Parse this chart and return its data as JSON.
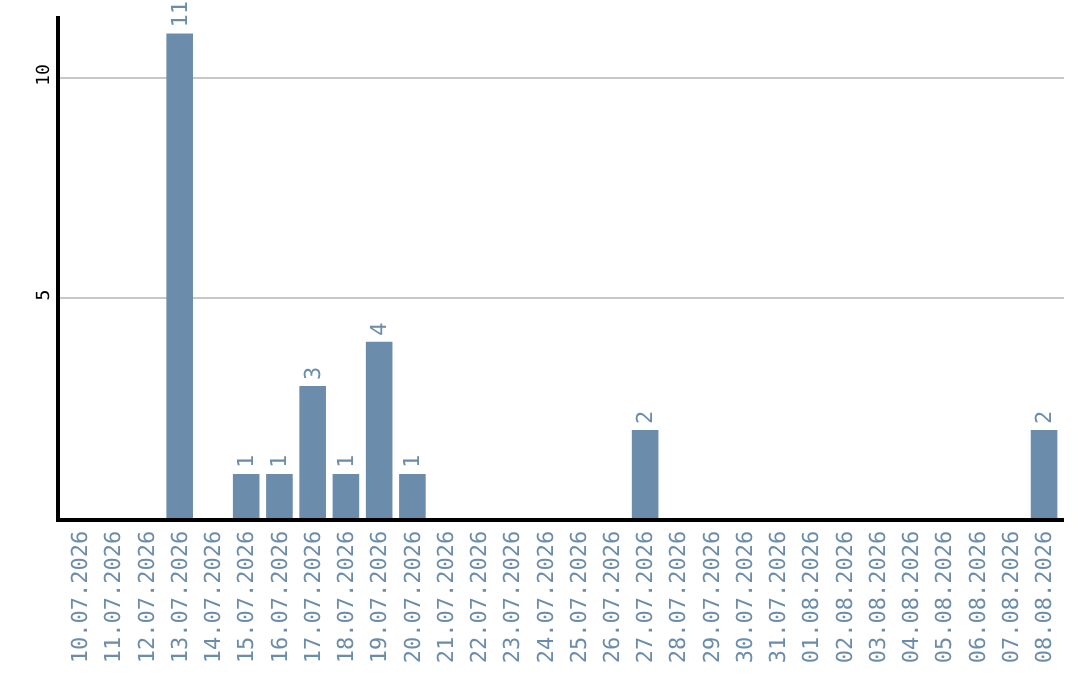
{
  "chart_data": {
    "type": "bar",
    "categories": [
      "10.07.2026",
      "11.07.2026",
      "12.07.2026",
      "13.07.2026",
      "14.07.2026",
      "15.07.2026",
      "16.07.2026",
      "17.07.2026",
      "18.07.2026",
      "19.07.2026",
      "20.07.2026",
      "21.07.2026",
      "22.07.2026",
      "23.07.2026",
      "24.07.2026",
      "25.07.2026",
      "26.07.2026",
      "27.07.2026",
      "28.07.2026",
      "29.07.2026",
      "30.07.2026",
      "31.07.2026",
      "01.08.2026",
      "02.08.2026",
      "03.08.2026",
      "04.08.2026",
      "05.08.2026",
      "06.08.2026",
      "07.08.2026",
      "08.08.2026"
    ],
    "values": [
      0,
      0,
      0,
      11,
      0,
      1,
      1,
      3,
      1,
      4,
      1,
      0,
      0,
      0,
      0,
      0,
      0,
      2,
      0,
      0,
      0,
      0,
      0,
      0,
      0,
      0,
      0,
      0,
      0,
      2
    ],
    "value_labels": [
      null,
      null,
      null,
      "11",
      null,
      "1",
      "1",
      "3",
      "1",
      "4",
      "1",
      null,
      null,
      null,
      null,
      null,
      null,
      "2",
      null,
      null,
      null,
      null,
      null,
      null,
      null,
      null,
      null,
      null,
      null,
      "2"
    ],
    "color": "#6b8cab",
    "ylim": [
      0,
      11.4
    ],
    "yticks": [
      5,
      10
    ],
    "grid": "y",
    "legend": false
  }
}
